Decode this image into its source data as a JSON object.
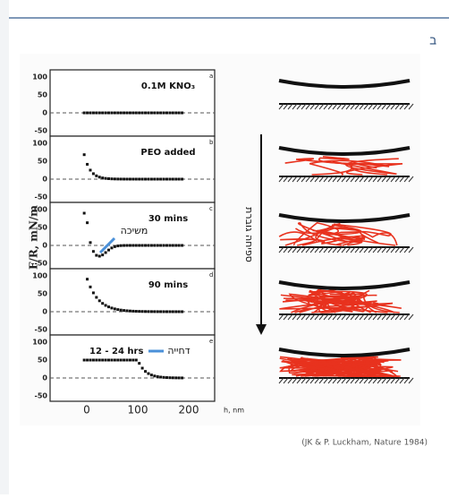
{
  "header": {
    "letter": "ב"
  },
  "figure": {
    "y_label": "F/R, mN/m",
    "x_label": "h, nm",
    "x_ticks": [
      "0",
      "100",
      "200"
    ],
    "panels": [
      {
        "label": "0.1M KNO₃",
        "letter": "a",
        "y_ticks": [
          "100",
          "50",
          "0",
          "-50"
        ]
      },
      {
        "label": "PEO added",
        "letter": "b",
        "y_ticks": [
          "100",
          "50",
          "0",
          "-50"
        ]
      },
      {
        "label": "30 mins",
        "letter": "c",
        "y_ticks": [
          "100",
          "50",
          "0",
          "-50"
        ]
      },
      {
        "label": "90 mins",
        "letter": "d",
        "y_ticks": [
          "100",
          "50",
          "0",
          "-50"
        ]
      },
      {
        "label": "12 - 24 hrs",
        "letter": "e",
        "y_ticks": [
          "100",
          "50",
          "0",
          "-50"
        ]
      }
    ],
    "attraction": "משיכה",
    "repulsion": "דחייה",
    "adsorption": "ספיחה גוברת"
  },
  "caption": "(JK & P. Luckham, Nature 1984)"
}
